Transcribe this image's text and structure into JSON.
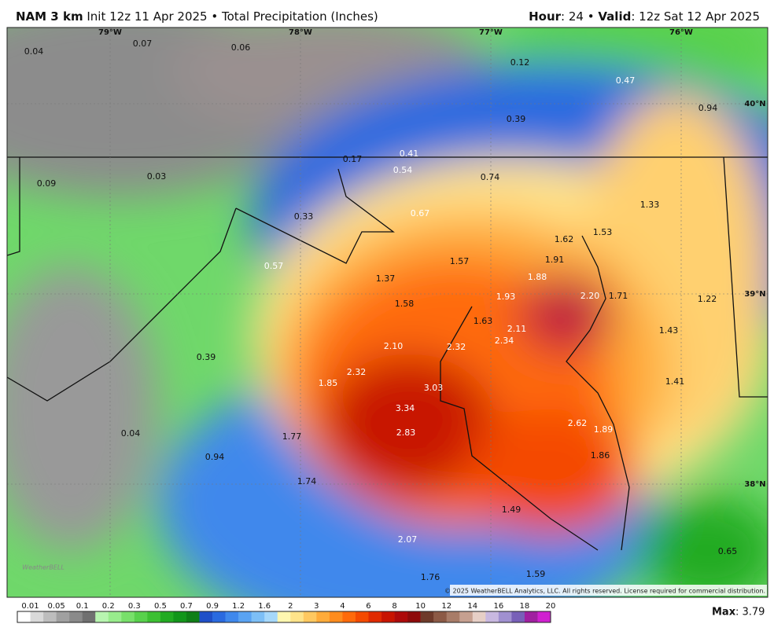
{
  "header": {
    "model": "NAM 3 km",
    "init": "Init 12z 11 Apr 2025",
    "sep1": "•",
    "product": "Total Precipitation (Inches)",
    "hour_label": "Hour",
    "hour": ": 24",
    "sep2": "•",
    "valid_label": "Valid",
    "valid": ": 12z Sat 12 Apr 2025"
  },
  "map": {
    "lon_labels": [
      "79°W",
      "78°W",
      "77°W",
      "76°W"
    ],
    "lat_labels": [
      "40°N",
      "39°N",
      "38°N"
    ],
    "point_values": [
      "0.04",
      "0.07",
      "0.06",
      "0.12",
      "0.47",
      "0.94",
      "0.39",
      "0.41",
      "0.17",
      "0.54",
      "0.74",
      "0.09",
      "0.03",
      "0.67",
      "0.33",
      "1.33",
      "1.62",
      "1.53",
      "1.57",
      "1.91",
      "0.57",
      "1.37",
      "1.88",
      "1.93",
      "2.20",
      "1.71",
      "1.22",
      "1.58",
      "1.63",
      "2.11",
      "1.43",
      "2.34",
      "2.10",
      "2.32",
      "0.39",
      "2.32",
      "1.85",
      "1.41",
      "3.03",
      "3.34",
      "2.62",
      "1.89",
      "0.04",
      "2.83",
      "1.77",
      "1.86",
      "0.94",
      "1.74",
      "1.49",
      "2.07",
      "0.65",
      "1.59",
      "1.76"
    ],
    "copyright": "© 2025 WeatherBELL Analytics, LLC. All rights reserved. License required for commercial distribution.",
    "logo": "WeatherBELL"
  },
  "colorbar": {
    "ticks": [
      "0.01",
      "0.05",
      "0.1",
      "0.2",
      "0.3",
      "0.5",
      "0.7",
      "0.9",
      "1.2",
      "1.6",
      "2",
      "3",
      "4",
      "6",
      "8",
      "10",
      "12",
      "14",
      "16",
      "18",
      "20"
    ],
    "colors": [
      "#ffffff",
      "#d9d9d9",
      "#bdbdbd",
      "#a0a0a0",
      "#8a8a8a",
      "#707070",
      "#b8f5b0",
      "#98ec8c",
      "#78e06a",
      "#58d14c",
      "#3cc032",
      "#22ab22",
      "#12961a",
      "#0f7f16",
      "#1f4fc8",
      "#2a6ae0",
      "#3f88ec",
      "#5aa3f2",
      "#7dbff6",
      "#a6d8fa",
      "#fff7b0",
      "#ffe38a",
      "#ffc860",
      "#ffab3a",
      "#ff8c1e",
      "#ff6a0a",
      "#f44a00",
      "#e02a00",
      "#c81400",
      "#ad0a0a",
      "#8e0a0a",
      "#6e3a2a",
      "#8c5a46",
      "#a87c68",
      "#c6a090",
      "#e6cfc6",
      "#c8b8e0",
      "#a090d0",
      "#7860b8",
      "#a020a0",
      "#d020d0"
    ]
  },
  "max": {
    "label": "Max",
    "value": ": 3.79"
  }
}
